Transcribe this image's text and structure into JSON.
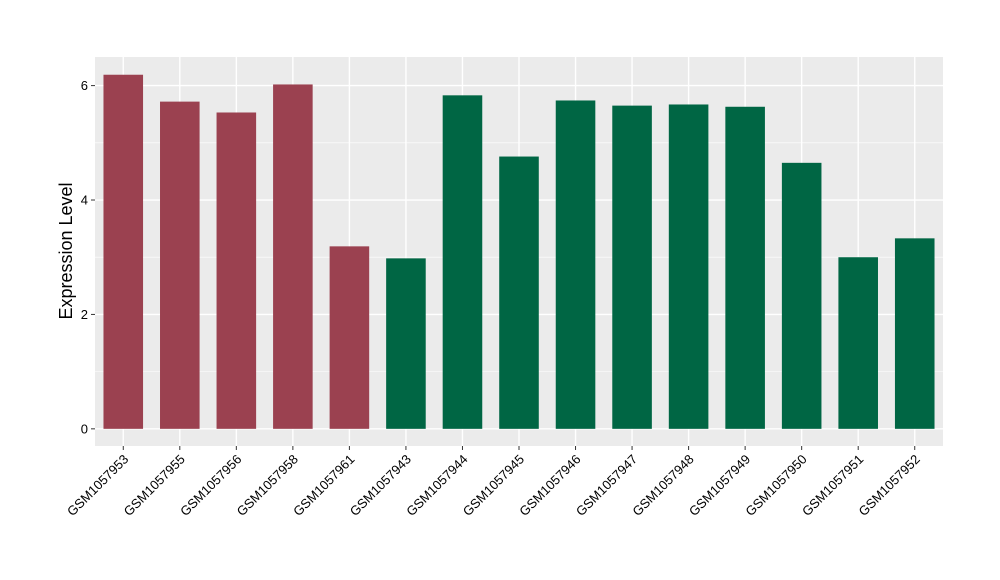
{
  "chart_data": {
    "type": "bar",
    "title": "",
    "xlabel": "",
    "ylabel": "Expression Level",
    "ylim": [
      -0.3,
      6.5
    ],
    "yticks": [
      0,
      2,
      4,
      6
    ],
    "grid": true,
    "categories": [
      "GSM1057953",
      "GSM1057955",
      "GSM1057956",
      "GSM1057958",
      "GSM1057961",
      "GSM1057943",
      "GSM1057944",
      "GSM1057945",
      "GSM1057946",
      "GSM1057947",
      "GSM1057948",
      "GSM1057949",
      "GSM1057950",
      "GSM1057951",
      "GSM1057952"
    ],
    "values": [
      6.19,
      5.72,
      5.53,
      6.02,
      3.19,
      2.98,
      5.83,
      4.76,
      5.74,
      5.65,
      5.67,
      5.63,
      4.65,
      3.0,
      3.33
    ],
    "bar_colors": [
      "#9b4150",
      "#9b4150",
      "#9b4150",
      "#9b4150",
      "#9b4150",
      "#006644",
      "#006644",
      "#006644",
      "#006644",
      "#006644",
      "#006644",
      "#006644",
      "#006644",
      "#006644",
      "#006644"
    ]
  },
  "colors": {
    "panel_background": "#ebebeb",
    "gridline": "#ffffff"
  }
}
